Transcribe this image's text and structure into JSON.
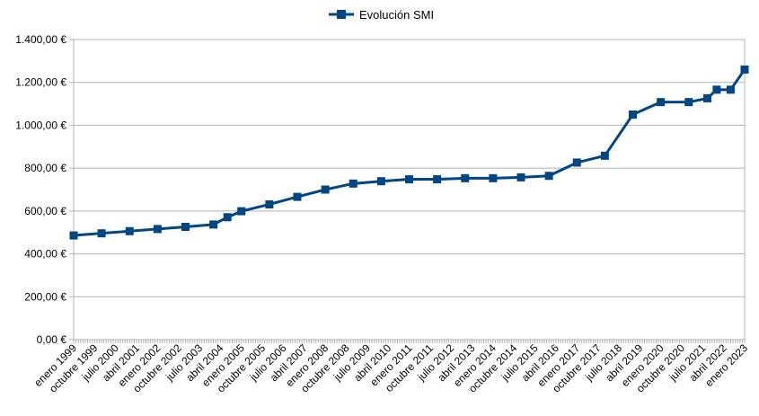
{
  "chart_data": {
    "type": "line",
    "title": "",
    "xlabel": "",
    "ylabel": "",
    "legend": {
      "position": "top-center",
      "entries": [
        "Evolución SMI"
      ]
    },
    "grid": true,
    "ylim": [
      0,
      1400
    ],
    "y_ticks": [
      0,
      200,
      400,
      600,
      800,
      1000,
      1200,
      1400
    ],
    "y_tick_labels": [
      "0,00 €",
      "200,00 €",
      "400,00 €",
      "600,00 €",
      "800,00 €",
      "1.000,00 €",
      "1.200,00 €",
      "1.400,00 €"
    ],
    "x_range": [
      "1999-01",
      "2023-01"
    ],
    "x_tick_labels": [
      {
        "label": "enero 1999",
        "date": "1999-01"
      },
      {
        "label": "octubre 1999",
        "date": "1999-10"
      },
      {
        "label": "julio 2000",
        "date": "2000-07"
      },
      {
        "label": "abril 2001",
        "date": "2001-04"
      },
      {
        "label": "enero 2002",
        "date": "2002-01"
      },
      {
        "label": "octubre 2002",
        "date": "2002-10"
      },
      {
        "label": "julio 2003",
        "date": "2003-07"
      },
      {
        "label": "abril 2004",
        "date": "2004-04"
      },
      {
        "label": "enero 2005",
        "date": "2005-01"
      },
      {
        "label": "octubre 2005",
        "date": "2005-10"
      },
      {
        "label": "julio 2006",
        "date": "2006-07"
      },
      {
        "label": "abril 2007",
        "date": "2007-04"
      },
      {
        "label": "enero 2008",
        "date": "2008-01"
      },
      {
        "label": "octubre 2008",
        "date": "2008-10"
      },
      {
        "label": "julio 2009",
        "date": "2009-07"
      },
      {
        "label": "abril 2010",
        "date": "2010-04"
      },
      {
        "label": "enero 2011",
        "date": "2011-01"
      },
      {
        "label": "octubre 2011",
        "date": "2011-10"
      },
      {
        "label": "julio 2012",
        "date": "2012-07"
      },
      {
        "label": "abril 2013",
        "date": "2013-04"
      },
      {
        "label": "enero 2014",
        "date": "2014-01"
      },
      {
        "label": "octubre 2014",
        "date": "2014-10"
      },
      {
        "label": "julio 2015",
        "date": "2015-07"
      },
      {
        "label": "abril 2016",
        "date": "2016-04"
      },
      {
        "label": "enero 2017",
        "date": "2017-01"
      },
      {
        "label": "octubre 2017",
        "date": "2017-10"
      },
      {
        "label": "julio 2018",
        "date": "2018-07"
      },
      {
        "label": "abril 2019",
        "date": "2019-04"
      },
      {
        "label": "enero 2020",
        "date": "2020-01"
      },
      {
        "label": "octubre 2020",
        "date": "2020-10"
      },
      {
        "label": "julio 2021",
        "date": "2021-07"
      },
      {
        "label": "abril 2022",
        "date": "2022-04"
      },
      {
        "label": "enero 2023",
        "date": "2023-01"
      }
    ],
    "series": [
      {
        "name": "Evolución SMI",
        "color": "#004586",
        "marker": "square",
        "points": [
          {
            "x": "1999-01",
            "y": 486
          },
          {
            "x": "2000-01",
            "y": 496
          },
          {
            "x": "2001-01",
            "y": 506
          },
          {
            "x": "2002-01",
            "y": 516
          },
          {
            "x": "2003-01",
            "y": 526
          },
          {
            "x": "2004-01",
            "y": 537
          },
          {
            "x": "2004-07",
            "y": 571
          },
          {
            "x": "2005-01",
            "y": 599
          },
          {
            "x": "2006-01",
            "y": 631
          },
          {
            "x": "2007-01",
            "y": 666
          },
          {
            "x": "2008-01",
            "y": 700
          },
          {
            "x": "2009-01",
            "y": 728
          },
          {
            "x": "2010-01",
            "y": 739
          },
          {
            "x": "2011-01",
            "y": 748
          },
          {
            "x": "2012-01",
            "y": 748
          },
          {
            "x": "2013-01",
            "y": 753
          },
          {
            "x": "2014-01",
            "y": 753
          },
          {
            "x": "2015-01",
            "y": 757
          },
          {
            "x": "2016-01",
            "y": 764
          },
          {
            "x": "2017-01",
            "y": 826
          },
          {
            "x": "2018-01",
            "y": 858
          },
          {
            "x": "2019-01",
            "y": 1050
          },
          {
            "x": "2020-01",
            "y": 1108
          },
          {
            "x": "2021-01",
            "y": 1108
          },
          {
            "x": "2021-09",
            "y": 1126
          },
          {
            "x": "2022-01",
            "y": 1166
          },
          {
            "x": "2022-07",
            "y": 1166
          },
          {
            "x": "2023-01",
            "y": 1260
          }
        ]
      }
    ]
  }
}
